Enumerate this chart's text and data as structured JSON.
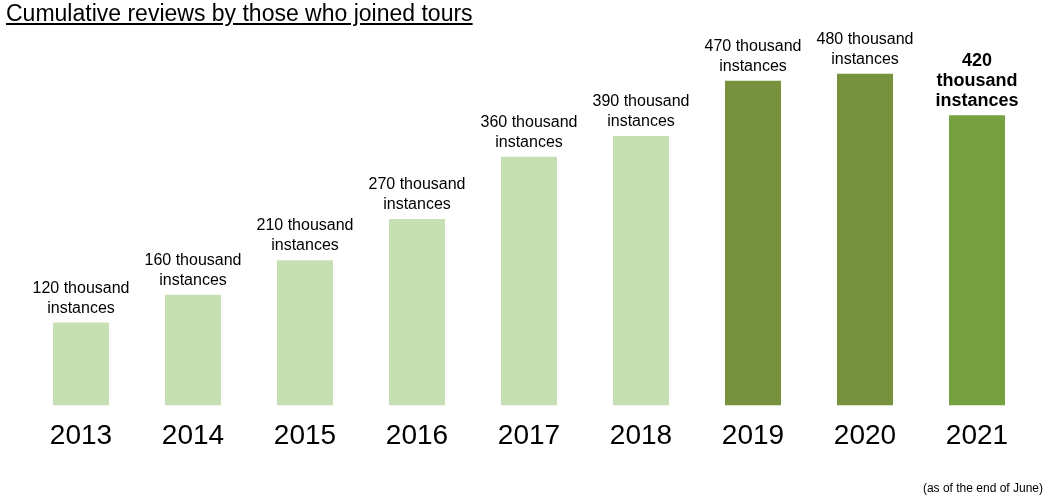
{
  "chart_data": {
    "type": "bar",
    "title": "Cumulative reviews by those who joined tours",
    "categories": [
      "2013",
      "2014",
      "2015",
      "2016",
      "2017",
      "2018",
      "2019",
      "2020",
      "2021"
    ],
    "values": [
      120,
      160,
      210,
      270,
      360,
      390,
      470,
      480,
      420
    ],
    "colors": [
      "#c6e0b4",
      "#c6e0b4",
      "#c6e0b4",
      "#c6e0b4",
      "#c6e0b4",
      "#c6e0b4",
      "#77923c",
      "#77923c",
      "#77a041"
    ],
    "value_labels": [
      "120 thousand instances",
      "160 thousand instances",
      "210 thousand instances",
      "270 thousand instances",
      "360 thousand instances",
      "390 thousand instances",
      "470 thousand instances",
      "480 thousand instances",
      "420 thousand instances"
    ],
    "annotations": [
      "(as of the end of June)"
    ],
    "grid": false,
    "legend": false
  }
}
